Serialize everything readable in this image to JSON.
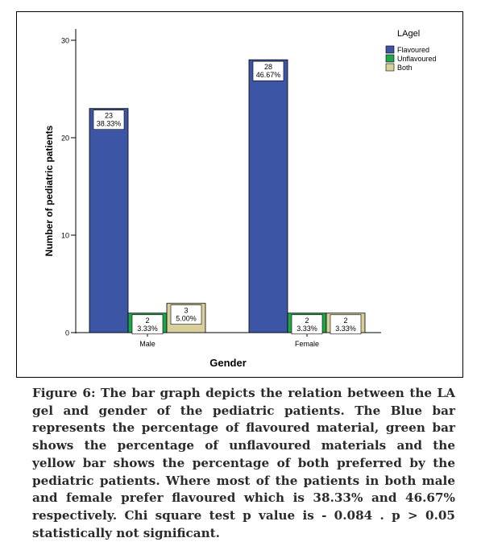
{
  "chart_data": {
    "type": "bar",
    "categories": [
      "Male",
      "Female"
    ],
    "series": [
      {
        "name": "Flavoured",
        "color": "#3d55a5",
        "values": [
          23,
          28
        ],
        "labels": [
          "23\n38.33%",
          "28\n46.67%"
        ]
      },
      {
        "name": "Unflavoured",
        "color": "#1fa64b",
        "values": [
          2,
          2
        ],
        "labels": [
          "2\n3.33%",
          "2\n3.33%"
        ]
      },
      {
        "name": "Both",
        "color": "#d8cf9a",
        "values": [
          3,
          2
        ],
        "labels": [
          "3\n5.00%",
          "2\n3.33%"
        ]
      }
    ],
    "xlabel": "Gender",
    "ylabel": "Number of pediatric patients",
    "ylim": [
      0,
      30
    ],
    "yticks": [
      0,
      10,
      20,
      30
    ],
    "legend_title": "LAgel",
    "legend_position": "top-right",
    "grid": false
  },
  "caption": "Figure 6: The bar graph depicts the relation between the LA gel and gender of the pediatric patients. The Blue bar represents the percentage of flavoured material, green bar shows the percentage of unflavoured materials and the yellow bar shows the percentage of both preferred by the pediatric patients. Where most of the patients in both male and female prefer flavoured which is 38.33% and 46.67% respectively. Chi square test p value is - 0.084 . p > 0.05 statistically not significant."
}
